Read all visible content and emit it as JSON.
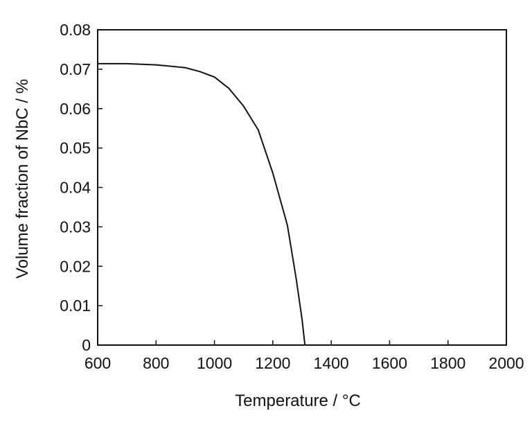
{
  "chart_data": {
    "type": "line",
    "xlabel": "Temperature /  °C",
    "ylabel": "Volume fraction of NbC / %",
    "xlim": [
      600,
      2000
    ],
    "ylim": [
      0,
      0.08
    ],
    "xticks": [
      "600",
      "800",
      "1000",
      "1200",
      "1400",
      "1600",
      "1800",
      "2000"
    ],
    "yticks": [
      "0",
      "0.01",
      "0.02",
      "0.03",
      "0.04",
      "0.05",
      "0.06",
      "0.07",
      "0.08"
    ],
    "grid": false,
    "line_color": "#111111",
    "series": [
      {
        "x": [
          600,
          700,
          800,
          900,
          950,
          1000,
          1050,
          1100,
          1150,
          1200,
          1250,
          1280,
          1300,
          1310
        ],
        "y": [
          0.0714,
          0.0714,
          0.0711,
          0.0704,
          0.0694,
          0.068,
          0.0651,
          0.0606,
          0.0546,
          0.0436,
          0.0304,
          0.0168,
          0.0066,
          0.0
        ]
      }
    ]
  }
}
